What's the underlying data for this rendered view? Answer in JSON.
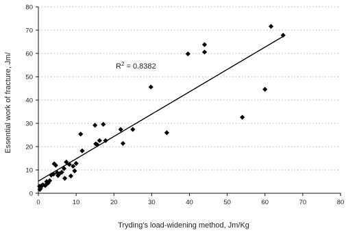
{
  "chart_data": {
    "type": "scatter",
    "title": "",
    "xlabel": "Tryding's load-widening method, Jm/Kg",
    "ylabel": "Essential work of fracture, Jm/",
    "xlim": [
      0,
      80
    ],
    "ylim": [
      0,
      80
    ],
    "x_ticks": [
      0,
      10,
      20,
      30,
      40,
      50,
      60,
      70,
      80
    ],
    "y_ticks": [
      0,
      10,
      20,
      30,
      40,
      50,
      60,
      70,
      80
    ],
    "grid": "dotted horizontal",
    "legend": "none",
    "marker": "diamond",
    "marker_color": "#000000",
    "line_color": "#000000",
    "annotation": {
      "label": "R",
      "superscript": "2",
      "value_text": " = 0.8382",
      "anchor": [
        20.5,
        53.5
      ]
    },
    "trendline": {
      "type": "linear",
      "points": [
        [
          0,
          5.2
        ],
        [
          65,
          67.5
        ]
      ]
    },
    "series": [
      {
        "points": [
          [
            0.3,
            3.0
          ],
          [
            0.4,
            1.6
          ],
          [
            0.6,
            2.2
          ],
          [
            0.8,
            3.2
          ],
          [
            1.2,
            3.6
          ],
          [
            1.8,
            3.3
          ],
          [
            2.0,
            3.6
          ],
          [
            2.2,
            5.0
          ],
          [
            2.6,
            4.4
          ],
          [
            3.0,
            5.4
          ],
          [
            3.4,
            7.8
          ],
          [
            4.0,
            8.2
          ],
          [
            4.2,
            12.6
          ],
          [
            4.6,
            12.0
          ],
          [
            5.0,
            8.8
          ],
          [
            5.2,
            7.6
          ],
          [
            5.6,
            8.4
          ],
          [
            6.2,
            9.0
          ],
          [
            6.8,
            10.6
          ],
          [
            7.0,
            6.4
          ],
          [
            7.4,
            13.4
          ],
          [
            8.2,
            12.4
          ],
          [
            8.6,
            7.4
          ],
          [
            9.2,
            11.6
          ],
          [
            9.6,
            9.6
          ],
          [
            10.0,
            12.8
          ],
          [
            11.2,
            25.4
          ],
          [
            11.6,
            18.2
          ],
          [
            15.0,
            29.2
          ],
          [
            15.2,
            21.2
          ],
          [
            15.6,
            20.8
          ],
          [
            16.2,
            22.6
          ],
          [
            17.2,
            29.6
          ],
          [
            17.8,
            22.6
          ],
          [
            21.8,
            27.4
          ],
          [
            22.4,
            21.4
          ],
          [
            25.0,
            27.4
          ],
          [
            29.8,
            45.6
          ],
          [
            34.0,
            26.0
          ],
          [
            39.6,
            59.8
          ],
          [
            44.0,
            60.6
          ],
          [
            44.0,
            63.8
          ],
          [
            54.0,
            32.6
          ],
          [
            60.0,
            44.6
          ],
          [
            61.6,
            71.6
          ],
          [
            64.8,
            67.8
          ]
        ]
      }
    ]
  }
}
